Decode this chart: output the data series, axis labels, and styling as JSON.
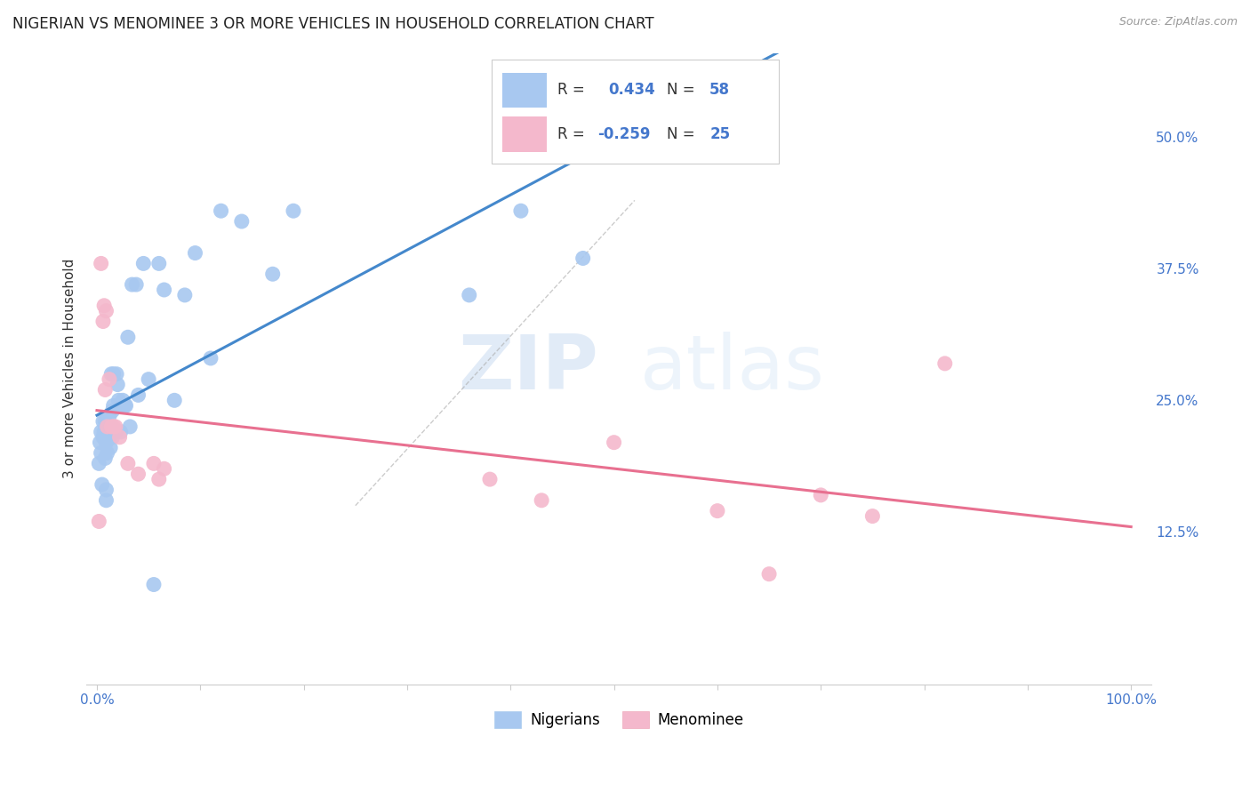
{
  "title": "NIGERIAN VS MENOMINEE 3 OR MORE VEHICLES IN HOUSEHOLD CORRELATION CHART",
  "source": "Source: ZipAtlas.com",
  "ylabel": "3 or more Vehicles in Household",
  "y_ticks": [
    0.125,
    0.25,
    0.375,
    0.5
  ],
  "y_tick_labels": [
    "12.5%",
    "25.0%",
    "37.5%",
    "50.0%"
  ],
  "x_ticks": [
    0.0,
    0.1,
    0.2,
    0.3,
    0.4,
    0.5,
    0.6,
    0.7,
    0.8,
    0.9,
    1.0
  ],
  "x_tick_labels": [
    "0.0%",
    "",
    "",
    "",
    "",
    "",
    "",
    "",
    "",
    "",
    "100.0%"
  ],
  "nigerians_R": 0.434,
  "nigerians_N": 58,
  "menominee_R": -0.259,
  "menominee_N": 25,
  "nigerians_color": "#a8c8f0",
  "menominee_color": "#f4b8cc",
  "line_nigerian_color": "#4488cc",
  "line_menominee_color": "#e87090",
  "legend_label_nigerian": "Nigerians",
  "legend_label_menominee": "Menominee",
  "watermark_zip": "ZIP",
  "watermark_atlas": "atlas",
  "background_color": "#ffffff",
  "nigerians_x": [
    0.002,
    0.003,
    0.004,
    0.004,
    0.005,
    0.006,
    0.006,
    0.007,
    0.008,
    0.008,
    0.009,
    0.009,
    0.009,
    0.01,
    0.01,
    0.011,
    0.011,
    0.012,
    0.012,
    0.013,
    0.013,
    0.014,
    0.014,
    0.015,
    0.015,
    0.016,
    0.016,
    0.017,
    0.018,
    0.019,
    0.02,
    0.021,
    0.022,
    0.023,
    0.025,
    0.027,
    0.028,
    0.03,
    0.032,
    0.034,
    0.038,
    0.04,
    0.045,
    0.05,
    0.055,
    0.06,
    0.065,
    0.075,
    0.085,
    0.095,
    0.11,
    0.12,
    0.14,
    0.17,
    0.19,
    0.36,
    0.41,
    0.47
  ],
  "nigerians_y": [
    0.19,
    0.21,
    0.2,
    0.22,
    0.17,
    0.215,
    0.23,
    0.22,
    0.195,
    0.23,
    0.21,
    0.155,
    0.165,
    0.2,
    0.215,
    0.215,
    0.225,
    0.225,
    0.235,
    0.205,
    0.225,
    0.225,
    0.275,
    0.215,
    0.24,
    0.245,
    0.275,
    0.22,
    0.22,
    0.275,
    0.265,
    0.25,
    0.245,
    0.22,
    0.25,
    0.245,
    0.245,
    0.31,
    0.225,
    0.36,
    0.36,
    0.255,
    0.38,
    0.27,
    0.075,
    0.38,
    0.355,
    0.25,
    0.35,
    0.39,
    0.29,
    0.43,
    0.42,
    0.37,
    0.43,
    0.35,
    0.43,
    0.385
  ],
  "menominee_x": [
    0.002,
    0.004,
    0.006,
    0.007,
    0.008,
    0.009,
    0.01,
    0.012,
    0.014,
    0.016,
    0.018,
    0.022,
    0.03,
    0.04,
    0.055,
    0.06,
    0.065,
    0.38,
    0.43,
    0.5,
    0.6,
    0.65,
    0.7,
    0.75,
    0.82
  ],
  "menominee_y": [
    0.135,
    0.38,
    0.325,
    0.34,
    0.26,
    0.335,
    0.225,
    0.27,
    0.225,
    0.225,
    0.225,
    0.215,
    0.19,
    0.18,
    0.19,
    0.175,
    0.185,
    0.175,
    0.155,
    0.21,
    0.145,
    0.085,
    0.16,
    0.14,
    0.285
  ],
  "xlim": [
    -0.01,
    1.02
  ],
  "ylim": [
    -0.02,
    0.58
  ],
  "grid_color": "#dddddd",
  "spine_color": "#cccccc",
  "tick_color": "#4477cc",
  "text_color": "#333333"
}
